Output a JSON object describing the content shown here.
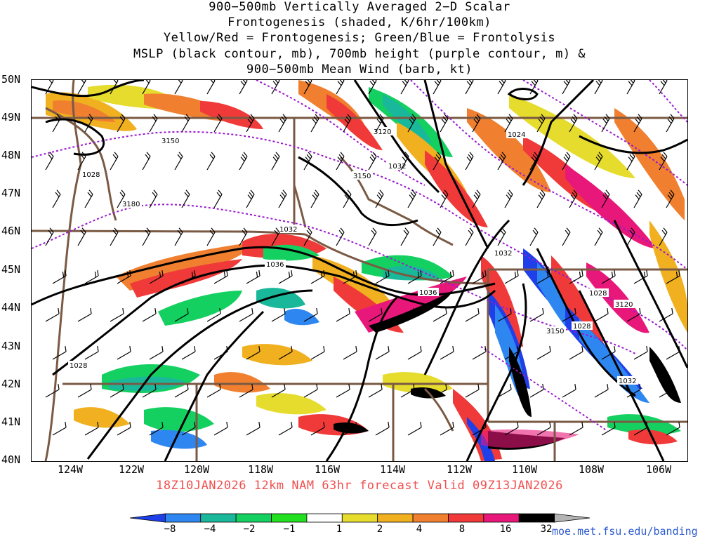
{
  "title_lines": [
    "900−500mb Vertically Averaged 2−D Scalar",
    "Frontogenesis (shaded, K/6hr/100km)",
    "Yellow/Red = Frontogenesis;  Green/Blue = Frontolysis",
    "MSLP (black contour, mb), 700mb height (purple contour, m) &",
    "900−500mb Mean Wind (barb, kt)"
  ],
  "forecast_line": "18Z10JAN2026 12km NAM 63hr forecast Valid 09Z13JAN2026",
  "credit": "moe.met.fsu.edu/banding",
  "lat_labels": [
    "50N",
    "49N",
    "48N",
    "47N",
    "46N",
    "45N",
    "44N",
    "43N",
    "42N",
    "41N",
    "40N"
  ],
  "lon_labels": [
    "124W",
    "122W",
    "120W",
    "118W",
    "116W",
    "114W",
    "112W",
    "110W",
    "108W",
    "106W"
  ],
  "colorbar": {
    "labels": [
      "−8",
      "−4",
      "−2",
      "−1",
      "1",
      "2",
      "4",
      "8",
      "16",
      "32"
    ],
    "colors": [
      "#1f3fe8",
      "#2e86f0",
      "#1ab89a",
      "#14d060",
      "#22e020",
      "#ffffff",
      "#e6dc2e",
      "#f0b020",
      "#f08030",
      "#f03a3a",
      "#e8187a",
      "#000000",
      "#b4b4b4"
    ]
  },
  "mslp_labels": [
    "1028",
    "1032",
    "1036",
    "1036",
    "1032",
    "1028",
    "1028",
    "1032",
    "1024",
    "1032",
    "1028"
  ],
  "height_labels": [
    "3150",
    "3120",
    "3150",
    "3180",
    "3150",
    "3120"
  ],
  "map_colors": {
    "mslp": "#000000",
    "height": "#9a1ad0",
    "border": "#7a5a44",
    "barb": "#000000"
  }
}
